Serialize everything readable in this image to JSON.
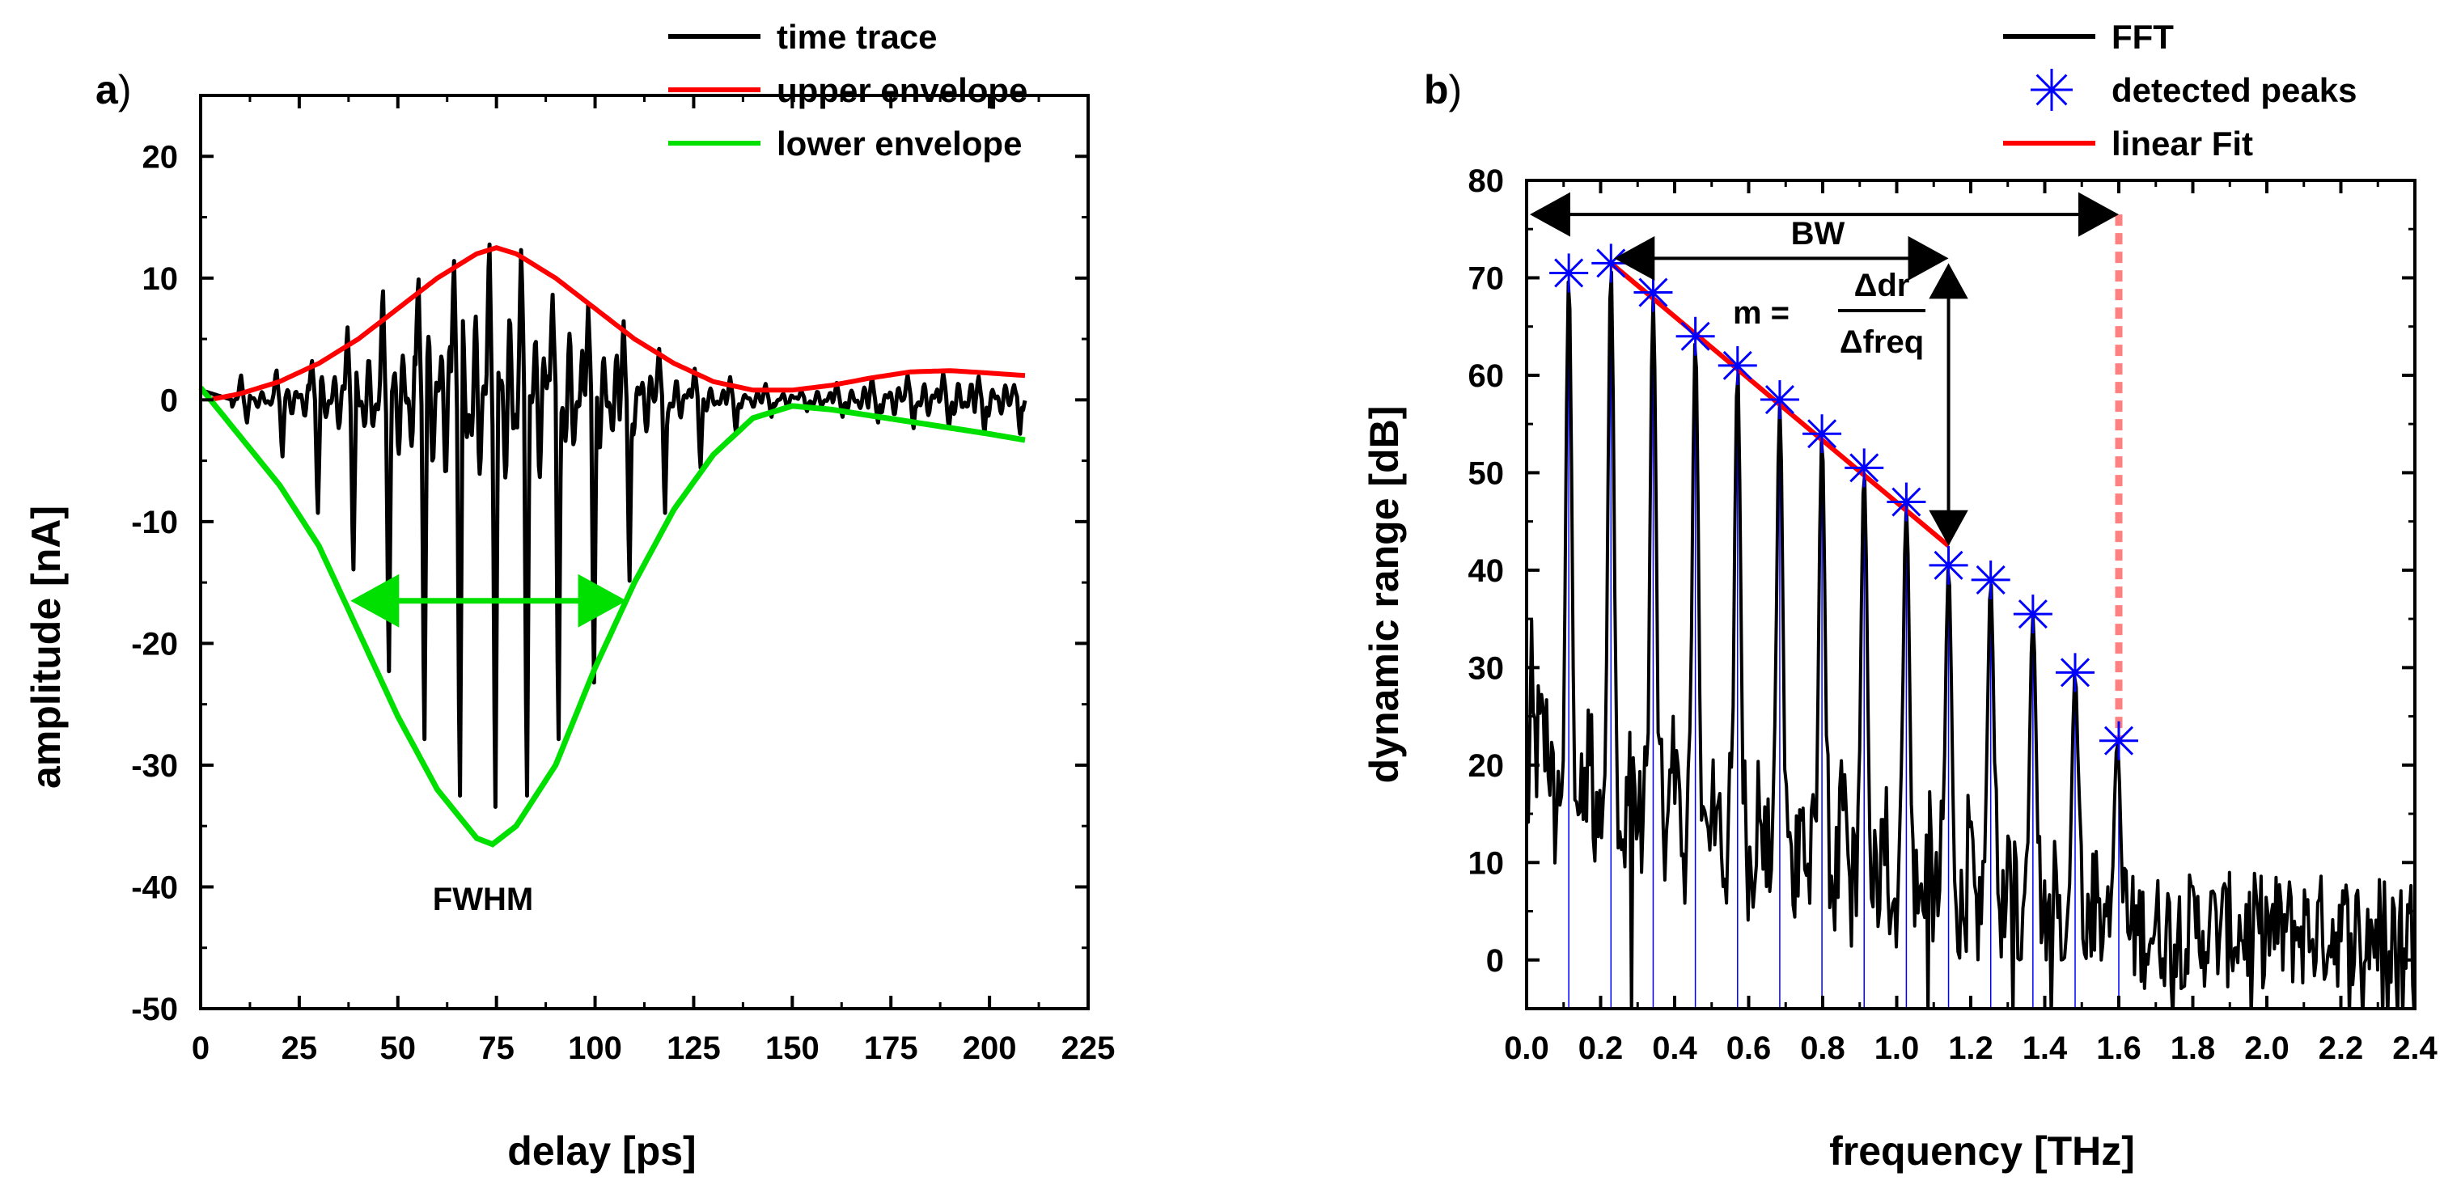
{
  "chart_data": [
    {
      "type": "line",
      "panel_label": "a",
      "panel_paren": ")",
      "xlabel": "delay [ps]",
      "ylabel": "amplitude [nA]",
      "xlim": [
        0,
        225
      ],
      "ylim": [
        -50,
        25
      ],
      "x_ticks": [
        "0",
        "25",
        "50",
        "75",
        "100",
        "125",
        "150",
        "175",
        "200",
        "225"
      ],
      "y_ticks": [
        "20",
        "10",
        "0",
        "-10",
        "-20",
        "-30",
        "-40",
        "-50"
      ],
      "legend": [
        "time trace",
        "upper envelope",
        "lower envelope"
      ],
      "legend_position": "top-right",
      "series": [
        {
          "name": "time trace",
          "color": "#000000",
          "pulse_times": [
            11,
            20,
            29,
            38,
            47,
            56,
            65,
            74,
            82,
            90,
            99,
            108,
            117,
            126,
            135,
            144,
            153,
            162,
            171,
            180,
            189,
            198,
            207
          ],
          "pulse_peaks": [
            2,
            2.5,
            3.5,
            6,
            9,
            11,
            12,
            12.5,
            12,
            11,
            9,
            7,
            5,
            3,
            2,
            1.5,
            1,
            1.5,
            2,
            2.5,
            2.5,
            2,
            1.5
          ],
          "pulse_troughs": [
            -2,
            -5,
            -10,
            -15,
            -24,
            -30,
            -35,
            -36,
            -35,
            -30,
            -25,
            -16,
            -10,
            -6,
            -3,
            -1.5,
            -1,
            -1.5,
            -2,
            -2.5,
            -2.5,
            -3,
            -3
          ]
        },
        {
          "name": "upper envelope",
          "color": "#ff0000",
          "x": [
            2,
            10,
            20,
            30,
            40,
            50,
            60,
            70,
            75,
            80,
            90,
            100,
            110,
            120,
            130,
            140,
            150,
            160,
            170,
            180,
            190,
            200,
            209
          ],
          "y": [
            0,
            0.5,
            1.5,
            3,
            5,
            7.5,
            10,
            12,
            12.5,
            12,
            10,
            7.5,
            5,
            3,
            1.5,
            0.8,
            0.8,
            1.2,
            1.8,
            2.3,
            2.4,
            2.2,
            2
          ]
        },
        {
          "name": "lower envelope",
          "color": "#00e000",
          "x": [
            0,
            5,
            10,
            20,
            30,
            40,
            50,
            60,
            70,
            74,
            80,
            90,
            100,
            110,
            120,
            130,
            140,
            150,
            160,
            170,
            180,
            190,
            200,
            209
          ],
          "y": [
            1,
            -1,
            -3,
            -7,
            -12,
            -19,
            -26,
            -32,
            -36,
            -36.5,
            -35,
            -30,
            -22,
            -15,
            -9,
            -4.5,
            -1.5,
            -0.5,
            -0.8,
            -1.3,
            -1.8,
            -2.3,
            -2.8,
            -3.3
          ]
        }
      ],
      "annotations": {
        "fwhm_label": "FWHM",
        "fwhm_arrow": {
          "from": 38,
          "to": 108,
          "y": -16.5,
          "color": "#00e000"
        }
      }
    },
    {
      "type": "line",
      "panel_label": "b",
      "panel_paren": ")",
      "xlabel": "frequency [THz]",
      "ylabel": "dynamic range [dB]",
      "xlim": [
        0,
        2.4
      ],
      "ylim": [
        -5,
        80
      ],
      "x_ticks": [
        "0.0",
        "0.2",
        "0.4",
        "0.6",
        "0.8",
        "1.0",
        "1.2",
        "1.4",
        "1.6",
        "1.8",
        "2.0",
        "2.2",
        "2.4"
      ],
      "y_ticks": [
        "80",
        "70",
        "60",
        "50",
        "40",
        "30",
        "20",
        "10",
        "0"
      ],
      "legend": [
        "FFT",
        "detected peaks",
        "linear Fit"
      ],
      "legend_position": "top-right",
      "series": [
        {
          "name": "FFT",
          "color": "#000000",
          "harmonic_spacing_thz": 0.114,
          "noise_floor_db": 3,
          "baseline_db": 22
        },
        {
          "name": "detected peaks",
          "color": "#0000ff",
          "marker": "asterisk",
          "x": [
            0.114,
            0.228,
            0.342,
            0.456,
            0.57,
            0.684,
            0.798,
            0.912,
            1.026,
            1.14,
            1.254,
            1.368,
            1.482,
            1.6
          ],
          "y": [
            70.5,
            71.5,
            68.5,
            64,
            61,
            57.5,
            54,
            50.5,
            47,
            40.5,
            39,
            35.5,
            29.5,
            22.5
          ]
        },
        {
          "name": "linear Fit",
          "color": "#ff0000",
          "x": [
            0.228,
            1.14
          ],
          "y": [
            71.5,
            42.5
          ]
        }
      ],
      "annotations": {
        "bw_label": "BW",
        "bw_arrow": {
          "from": 0.0,
          "to": 1.6,
          "y": 76.5
        },
        "fit_range_arrow": {
          "from": 0.228,
          "to": 1.14,
          "y": 72
        },
        "drop_arrow": {
          "x": 1.14,
          "from": 71.5,
          "to": 42.5
        },
        "cutoff_x": 1.6,
        "cutoff_color": "#ff8080",
        "slope_prefix": "m =",
        "slope_numerator": "Δdr",
        "slope_denominator": "Δfreq"
      }
    }
  ]
}
